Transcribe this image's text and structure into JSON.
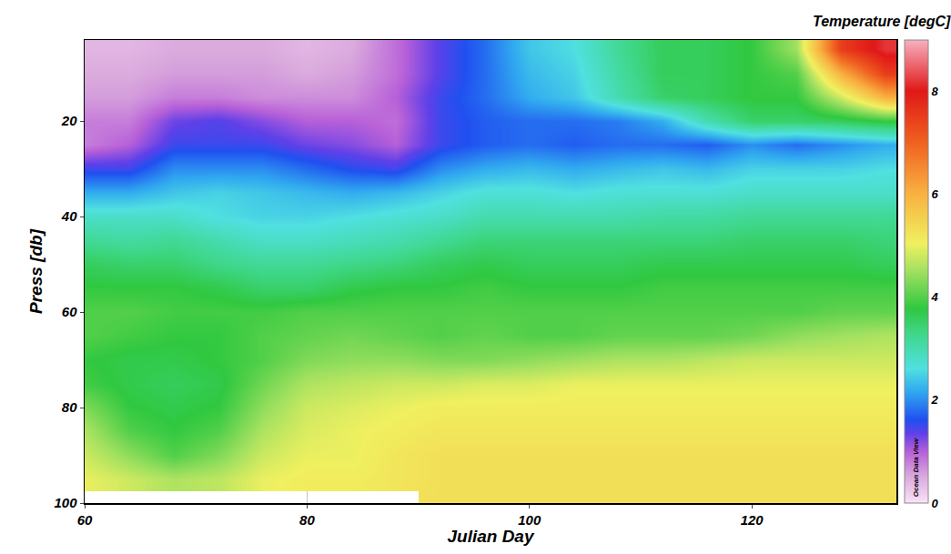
{
  "chart_data": {
    "type": "heatmap",
    "x_label": "Julian Day",
    "y_label": "Press [db]",
    "colorbar_title": "Temperature [degC]",
    "annotations": [
      "Ocean Data View"
    ],
    "x": [
      60,
      64,
      68,
      72,
      76,
      80,
      84,
      88,
      92,
      96,
      100,
      104,
      108,
      112,
      116,
      120,
      124,
      128,
      132
    ],
    "y": [
      5,
      10,
      15,
      20,
      25,
      30,
      35,
      40,
      45,
      50,
      55,
      60,
      65,
      70,
      75,
      80,
      85,
      90,
      95,
      100
    ],
    "z": [
      [
        0.4,
        0.4,
        0.5,
        0.5,
        0.5,
        0.4,
        0.5,
        0.9,
        1.4,
        1.8,
        2.4,
        2.6,
        3.2,
        3.6,
        3.6,
        3.8,
        4.5,
        7.5,
        8.2
      ],
      [
        0.5,
        0.5,
        0.6,
        0.6,
        0.6,
        0.5,
        0.6,
        0.9,
        1.4,
        1.8,
        2.3,
        2.5,
        3.1,
        3.6,
        3.6,
        3.8,
        4.0,
        6.0,
        7.5
      ],
      [
        0.6,
        0.6,
        0.8,
        0.8,
        0.7,
        0.7,
        0.7,
        1.0,
        1.5,
        1.8,
        2.2,
        2.4,
        3.0,
        3.5,
        3.6,
        3.8,
        3.8,
        4.8,
        6.0
      ],
      [
        0.8,
        0.8,
        1.3,
        1.4,
        1.2,
        1.0,
        1.0,
        0.9,
        1.5,
        1.7,
        1.8,
        1.8,
        1.9,
        2.2,
        3.0,
        3.5,
        3.5,
        3.6,
        3.8
      ],
      [
        0.8,
        1.0,
        1.5,
        1.5,
        1.5,
        1.3,
        1.2,
        1.0,
        1.5,
        1.7,
        1.8,
        1.7,
        1.8,
        1.8,
        1.7,
        2.0,
        1.8,
        2.0,
        2.2
      ],
      [
        1.5,
        1.5,
        2.0,
        2.0,
        2.0,
        1.8,
        1.6,
        1.5,
        2.0,
        2.2,
        2.3,
        2.2,
        2.3,
        2.4,
        2.3,
        2.5,
        2.5,
        2.5,
        2.6
      ],
      [
        2.2,
        2.2,
        2.4,
        2.5,
        2.4,
        2.3,
        2.2,
        2.3,
        2.5,
        2.7,
        2.7,
        2.6,
        2.7,
        2.7,
        2.7,
        2.8,
        2.8,
        2.8,
        2.8
      ],
      [
        2.8,
        2.8,
        2.8,
        2.6,
        2.5,
        2.5,
        2.6,
        2.7,
        2.8,
        3.0,
        3.0,
        3.0,
        3.0,
        3.1,
        3.1,
        3.2,
        3.2,
        3.2,
        3.2
      ],
      [
        3.2,
        3.1,
        3.2,
        3.0,
        2.8,
        2.8,
        2.9,
        3.0,
        3.2,
        3.4,
        3.4,
        3.4,
        3.4,
        3.4,
        3.4,
        3.5,
        3.5,
        3.5,
        3.4
      ],
      [
        3.6,
        3.5,
        3.5,
        3.3,
        3.2,
        3.2,
        3.3,
        3.4,
        3.6,
        3.7,
        3.6,
        3.6,
        3.6,
        3.7,
        3.7,
        3.7,
        3.7,
        3.7,
        3.6
      ],
      [
        3.8,
        3.8,
        3.8,
        3.7,
        3.5,
        3.5,
        3.7,
        3.8,
        3.8,
        3.9,
        3.8,
        3.8,
        3.8,
        3.9,
        3.9,
        3.9,
        3.9,
        3.9,
        3.9
      ],
      [
        4.0,
        4.0,
        3.9,
        3.9,
        3.9,
        4.0,
        4.0,
        4.0,
        4.0,
        4.0,
        4.0,
        4.0,
        4.0,
        4.0,
        4.0,
        4.0,
        4.0,
        4.1,
        4.1
      ],
      [
        4.0,
        3.9,
        3.8,
        3.8,
        4.0,
        4.1,
        4.2,
        4.1,
        4.0,
        4.1,
        4.0,
        4.0,
        4.1,
        4.1,
        4.1,
        4.2,
        4.4,
        4.5,
        4.6
      ],
      [
        3.8,
        3.7,
        3.7,
        3.8,
        4.0,
        4.3,
        4.4,
        4.4,
        4.3,
        4.3,
        4.4,
        4.5,
        4.6,
        4.6,
        4.7,
        4.8,
        4.8,
        4.8,
        4.8
      ],
      [
        3.9,
        3.7,
        3.6,
        3.7,
        4.2,
        4.6,
        4.7,
        4.8,
        4.8,
        4.9,
        4.9,
        5.0,
        5.0,
        5.0,
        5.0,
        5.0,
        5.0,
        5.0,
        5.0
      ],
      [
        4.3,
        3.8,
        3.7,
        3.8,
        4.4,
        4.8,
        4.9,
        5.0,
        5.1,
        5.1,
        5.1,
        5.1,
        5.1,
        5.1,
        5.1,
        5.1,
        5.1,
        5.1,
        5.1
      ],
      [
        4.6,
        4.0,
        3.8,
        4.0,
        4.6,
        4.9,
        5.0,
        5.1,
        5.2,
        5.2,
        5.2,
        5.2,
        5.2,
        5.2,
        5.2,
        5.2,
        5.2,
        5.2,
        5.2
      ],
      [
        4.8,
        4.4,
        4.0,
        4.3,
        4.8,
        5.0,
        5.0,
        5.2,
        5.3,
        5.3,
        5.3,
        5.3,
        5.3,
        5.3,
        5.3,
        5.3,
        5.3,
        5.3,
        5.3
      ],
      [
        5.0,
        4.8,
        4.6,
        4.7,
        5.0,
        5.1,
        5.1,
        5.2,
        5.3,
        5.3,
        5.3,
        5.3,
        5.3,
        5.3,
        5.3,
        5.3,
        5.3,
        5.3,
        5.3
      ],
      [
        null,
        null,
        null,
        null,
        null,
        null,
        null,
        null,
        5.3,
        5.3,
        5.3,
        5.3,
        5.3,
        5.3,
        5.3,
        5.3,
        5.3,
        5.3,
        5.3
      ]
    ],
    "xlim": [
      60,
      133
    ],
    "xticks": [
      60,
      80,
      100,
      120
    ],
    "ylim": [
      100,
      3
    ],
    "yticks": [
      20,
      40,
      60,
      80,
      100
    ],
    "zlim": [
      0,
      9
    ],
    "zticks": [
      0,
      2,
      4,
      6,
      8
    ],
    "grid": true
  }
}
